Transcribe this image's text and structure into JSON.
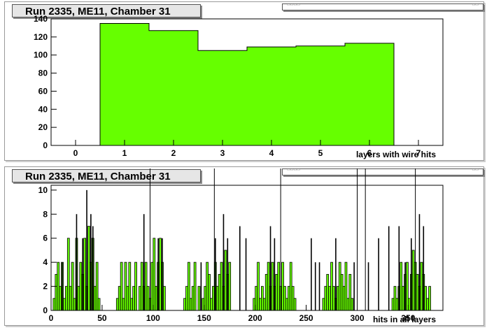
{
  "chart_data": [
    {
      "type": "bar",
      "title": "Run 2335, ME11, Chamber 31",
      "xlabel": "layers with wire hits",
      "ylabel": "",
      "xlim": [
        -0.5,
        7.5
      ],
      "ylim": [
        0,
        140
      ],
      "x_ticks": [
        0,
        1,
        2,
        3,
        4,
        5,
        6,
        7
      ],
      "y_ticks": [
        0,
        20,
        40,
        60,
        80,
        100,
        120,
        140
      ],
      "categories": [
        1,
        2,
        3,
        4,
        5,
        6
      ],
      "values": [
        135,
        127,
        105,
        109,
        110,
        113
      ],
      "fill_color": "#66ff00",
      "grid": false
    },
    {
      "type": "bar",
      "title": "Run 2335, ME11, Chamber 31",
      "xlabel": "hits in all layers",
      "ylabel": "",
      "xlim": [
        0,
        384
      ],
      "ylim": [
        0,
        10.4
      ],
      "x_ticks": [
        0,
        50,
        100,
        150,
        200,
        250,
        300,
        350
      ],
      "y_ticks": [
        0,
        2,
        4,
        6,
        8,
        10
      ],
      "fill_color": "#66ff00",
      "grid": false,
      "bins": [
        [
          2,
          1
        ],
        [
          4,
          3
        ],
        [
          6,
          4
        ],
        [
          8,
          2
        ],
        [
          10,
          4
        ],
        [
          12,
          1
        ],
        [
          14,
          2
        ],
        [
          16,
          6
        ],
        [
          18,
          2
        ],
        [
          20,
          4
        ],
        [
          22,
          1
        ],
        [
          24,
          6
        ],
        [
          26,
          2
        ],
        [
          28,
          4
        ],
        [
          30,
          3
        ],
        [
          32,
          6
        ],
        [
          34,
          2
        ],
        [
          36,
          7
        ],
        [
          38,
          4
        ],
        [
          40,
          6
        ],
        [
          42,
          2
        ],
        [
          44,
          4
        ],
        [
          46,
          1
        ],
        [
          64,
          1
        ],
        [
          66,
          2
        ],
        [
          68,
          4
        ],
        [
          70,
          1
        ],
        [
          72,
          4
        ],
        [
          74,
          2
        ],
        [
          76,
          4
        ],
        [
          78,
          1
        ],
        [
          80,
          2
        ],
        [
          82,
          4
        ],
        [
          86,
          2
        ],
        [
          88,
          4
        ],
        [
          90,
          2
        ],
        [
          92,
          4
        ],
        [
          94,
          2
        ],
        [
          96,
          1
        ],
        [
          98,
          4
        ],
        [
          100,
          6
        ],
        [
          102,
          2
        ],
        [
          104,
          4
        ],
        [
          106,
          6
        ],
        [
          108,
          4
        ],
        [
          110,
          2
        ],
        [
          130,
          1
        ],
        [
          132,
          2
        ],
        [
          134,
          4
        ],
        [
          136,
          1
        ],
        [
          138,
          2
        ],
        [
          140,
          4
        ],
        [
          144,
          2
        ],
        [
          148,
          1
        ],
        [
          150,
          2
        ],
        [
          152,
          4
        ],
        [
          154,
          3
        ],
        [
          156,
          1
        ],
        [
          158,
          2
        ],
        [
          160,
          4
        ],
        [
          162,
          2
        ],
        [
          164,
          3
        ],
        [
          166,
          4
        ],
        [
          168,
          2
        ],
        [
          170,
          5
        ],
        [
          172,
          3
        ],
        [
          174,
          4
        ],
        [
          198,
          1
        ],
        [
          200,
          2
        ],
        [
          202,
          4
        ],
        [
          204,
          1
        ],
        [
          206,
          2
        ],
        [
          208,
          1
        ],
        [
          210,
          3
        ],
        [
          212,
          4
        ],
        [
          214,
          2
        ],
        [
          216,
          4
        ],
        [
          218,
          2
        ],
        [
          220,
          3
        ],
        [
          222,
          4
        ],
        [
          224,
          2
        ],
        [
          226,
          4
        ],
        [
          228,
          2
        ],
        [
          230,
          1
        ],
        [
          232,
          2
        ],
        [
          234,
          4
        ],
        [
          236,
          2
        ],
        [
          238,
          1
        ],
        [
          266,
          1
        ],
        [
          268,
          2
        ],
        [
          270,
          3
        ],
        [
          272,
          2
        ],
        [
          274,
          4
        ],
        [
          276,
          2
        ],
        [
          278,
          1
        ],
        [
          280,
          2
        ],
        [
          282,
          4
        ],
        [
          284,
          3
        ],
        [
          286,
          2
        ],
        [
          288,
          4
        ],
        [
          290,
          1
        ],
        [
          292,
          3
        ],
        [
          294,
          1
        ],
        [
          334,
          1
        ],
        [
          336,
          2
        ],
        [
          338,
          1
        ],
        [
          340,
          2
        ],
        [
          342,
          4
        ],
        [
          344,
          2
        ],
        [
          346,
          3
        ],
        [
          348,
          4
        ],
        [
          350,
          1
        ],
        [
          352,
          3
        ],
        [
          354,
          5
        ],
        [
          356,
          4
        ],
        [
          358,
          3
        ],
        [
          360,
          2
        ],
        [
          362,
          4
        ],
        [
          364,
          3
        ],
        [
          366,
          2
        ],
        [
          368,
          1
        ],
        [
          370,
          2
        ]
      ],
      "spikes": [
        [
          10,
          4
        ],
        [
          24,
          8
        ],
        [
          30,
          6
        ],
        [
          34,
          10
        ],
        [
          38,
          8
        ],
        [
          40,
          7
        ],
        [
          90,
          8
        ],
        [
          104,
          6
        ],
        [
          108,
          6
        ],
        [
          146,
          4
        ],
        [
          160,
          6
        ],
        [
          168,
          8
        ],
        [
          172,
          6
        ],
        [
          184,
          7
        ],
        [
          190,
          6
        ],
        [
          214,
          7
        ],
        [
          218,
          6
        ],
        [
          254,
          6
        ],
        [
          258,
          4
        ],
        [
          262,
          4
        ],
        [
          278,
          6
        ],
        [
          296,
          4
        ],
        [
          310,
          4
        ],
        [
          320,
          6
        ],
        [
          330,
          7
        ],
        [
          340,
          7
        ],
        [
          346,
          4
        ],
        [
          352,
          6
        ],
        [
          360,
          8
        ],
        [
          364,
          7
        ]
      ],
      "long_lines": [
        97,
        160,
        225,
        300,
        308,
        357
      ]
    }
  ]
}
